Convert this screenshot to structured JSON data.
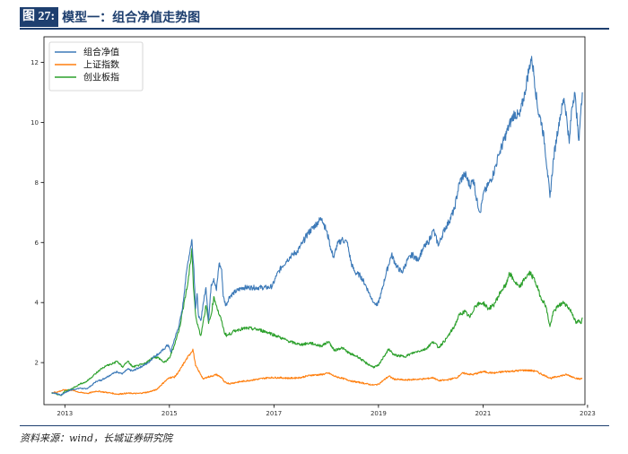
{
  "header": {
    "figure_label": "图 27:",
    "title": "模型一：组合净值走势图"
  },
  "footer": {
    "source": "资料来源：wind，长城证券研究院"
  },
  "chart_data": {
    "type": "line",
    "title": "模型一：组合净值走势图",
    "xlabel": "",
    "ylabel": "",
    "xlim": [
      2012.6,
      2022.95
    ],
    "ylim": [
      0.6,
      12.85
    ],
    "x_ticks": [
      {
        "value": 2013,
        "label": "2013"
      },
      {
        "value": 2015,
        "label": "2015"
      },
      {
        "value": 2017,
        "label": "2017"
      },
      {
        "value": 2019,
        "label": "2019"
      },
      {
        "value": 2021,
        "label": "2021"
      },
      {
        "value": 2023,
        "label": "2023"
      }
    ],
    "y_ticks": [
      {
        "value": 2,
        "label": "2"
      },
      {
        "value": 4,
        "label": "4"
      },
      {
        "value": 6,
        "label": "6"
      },
      {
        "value": 8,
        "label": "8"
      },
      {
        "value": 10,
        "label": "10"
      },
      {
        "value": 12,
        "label": "12"
      }
    ],
    "legend_position": "top-left",
    "series": [
      {
        "name": "组合净值",
        "color": "#3d7ab8",
        "points": [
          [
            2012.75,
            1.0
          ],
          [
            2012.85,
            0.97
          ],
          [
            2012.93,
            0.92
          ],
          [
            2013.0,
            1.0
          ],
          [
            2013.1,
            1.08
          ],
          [
            2013.2,
            1.12
          ],
          [
            2013.3,
            1.15
          ],
          [
            2013.4,
            1.12
          ],
          [
            2013.5,
            1.22
          ],
          [
            2013.6,
            1.38
          ],
          [
            2013.7,
            1.42
          ],
          [
            2013.8,
            1.52
          ],
          [
            2013.9,
            1.62
          ],
          [
            2014.0,
            1.7
          ],
          [
            2014.1,
            1.62
          ],
          [
            2014.2,
            1.78
          ],
          [
            2014.3,
            1.72
          ],
          [
            2014.4,
            1.82
          ],
          [
            2014.5,
            1.9
          ],
          [
            2014.6,
            2.0
          ],
          [
            2014.7,
            2.2
          ],
          [
            2014.8,
            2.3
          ],
          [
            2014.9,
            2.45
          ],
          [
            2014.97,
            2.6
          ],
          [
            2015.03,
            2.35
          ],
          [
            2015.1,
            2.8
          ],
          [
            2015.18,
            3.2
          ],
          [
            2015.25,
            3.8
          ],
          [
            2015.3,
            4.6
          ],
          [
            2015.35,
            5.3
          ],
          [
            2015.4,
            5.8
          ],
          [
            2015.43,
            6.1
          ],
          [
            2015.47,
            5.1
          ],
          [
            2015.5,
            3.8
          ],
          [
            2015.53,
            4.3
          ],
          [
            2015.56,
            3.5
          ],
          [
            2015.6,
            3.4
          ],
          [
            2015.65,
            4.0
          ],
          [
            2015.7,
            4.5
          ],
          [
            2015.75,
            3.4
          ],
          [
            2015.8,
            4.6
          ],
          [
            2015.85,
            4.8
          ],
          [
            2015.9,
            4.4
          ],
          [
            2015.95,
            5.3
          ],
          [
            2016.0,
            5.1
          ],
          [
            2016.03,
            4.2
          ],
          [
            2016.08,
            3.9
          ],
          [
            2016.15,
            4.2
          ],
          [
            2016.25,
            4.35
          ],
          [
            2016.4,
            4.5
          ],
          [
            2016.6,
            4.5
          ],
          [
            2016.9,
            4.5
          ],
          [
            2016.97,
            4.55
          ],
          [
            2017.05,
            4.9
          ],
          [
            2017.15,
            5.2
          ],
          [
            2017.25,
            5.4
          ],
          [
            2017.35,
            5.6
          ],
          [
            2017.45,
            5.7
          ],
          [
            2017.55,
            6.0
          ],
          [
            2017.65,
            6.3
          ],
          [
            2017.75,
            6.5
          ],
          [
            2017.85,
            6.7
          ],
          [
            2017.92,
            6.8
          ],
          [
            2018.0,
            6.4
          ],
          [
            2018.05,
            6.1
          ],
          [
            2018.1,
            5.7
          ],
          [
            2018.15,
            5.5
          ],
          [
            2018.2,
            5.9
          ],
          [
            2018.3,
            6.1
          ],
          [
            2018.4,
            6.0
          ],
          [
            2018.48,
            5.3
          ],
          [
            2018.55,
            5.0
          ],
          [
            2018.65,
            4.9
          ],
          [
            2018.75,
            4.6
          ],
          [
            2018.85,
            4.2
          ],
          [
            2018.92,
            4.0
          ],
          [
            2018.98,
            3.9
          ],
          [
            2019.05,
            4.3
          ],
          [
            2019.15,
            5.0
          ],
          [
            2019.25,
            5.6
          ],
          [
            2019.35,
            5.2
          ],
          [
            2019.45,
            5.0
          ],
          [
            2019.55,
            5.4
          ],
          [
            2019.65,
            5.6
          ],
          [
            2019.75,
            5.4
          ],
          [
            2019.85,
            5.8
          ],
          [
            2019.95,
            6.0
          ],
          [
            2020.05,
            6.4
          ],
          [
            2020.15,
            5.9
          ],
          [
            2020.25,
            6.4
          ],
          [
            2020.35,
            6.7
          ],
          [
            2020.45,
            7.1
          ],
          [
            2020.55,
            8.0
          ],
          [
            2020.65,
            8.3
          ],
          [
            2020.75,
            7.9
          ],
          [
            2020.82,
            8.1
          ],
          [
            2020.88,
            7.4
          ],
          [
            2020.95,
            7.0
          ],
          [
            2021.0,
            7.6
          ],
          [
            2021.1,
            7.9
          ],
          [
            2021.2,
            8.3
          ],
          [
            2021.3,
            8.9
          ],
          [
            2021.4,
            9.4
          ],
          [
            2021.5,
            9.9
          ],
          [
            2021.6,
            10.3
          ],
          [
            2021.7,
            10.2
          ],
          [
            2021.8,
            11.0
          ],
          [
            2021.88,
            11.8
          ],
          [
            2021.93,
            12.2
          ],
          [
            2021.98,
            11.5
          ],
          [
            2022.05,
            10.4
          ],
          [
            2022.12,
            10.0
          ],
          [
            2022.18,
            9.3
          ],
          [
            2022.23,
            8.4
          ],
          [
            2022.28,
            7.5
          ],
          [
            2022.35,
            8.8
          ],
          [
            2022.45,
            10.0
          ],
          [
            2022.55,
            10.8
          ],
          [
            2022.6,
            10.2
          ],
          [
            2022.65,
            9.3
          ],
          [
            2022.7,
            10.5
          ],
          [
            2022.75,
            11.0
          ],
          [
            2022.78,
            10.5
          ],
          [
            2022.83,
            9.4
          ],
          [
            2022.87,
            10.3
          ],
          [
            2022.9,
            11.0
          ]
        ]
      },
      {
        "name": "上证指数",
        "color": "#ff7f0e",
        "points": [
          [
            2012.75,
            1.0
          ],
          [
            2012.85,
            1.02
          ],
          [
            2013.0,
            1.1
          ],
          [
            2013.15,
            1.08
          ],
          [
            2013.3,
            1.0
          ],
          [
            2013.45,
            0.98
          ],
          [
            2013.6,
            1.05
          ],
          [
            2013.75,
            1.02
          ],
          [
            2013.9,
            0.98
          ],
          [
            2014.0,
            0.95
          ],
          [
            2014.2,
            0.98
          ],
          [
            2014.4,
            0.97
          ],
          [
            2014.6,
            1.02
          ],
          [
            2014.75,
            1.1
          ],
          [
            2014.9,
            1.35
          ],
          [
            2015.0,
            1.5
          ],
          [
            2015.1,
            1.52
          ],
          [
            2015.2,
            1.75
          ],
          [
            2015.3,
            2.05
          ],
          [
            2015.4,
            2.3
          ],
          [
            2015.45,
            2.45
          ],
          [
            2015.5,
            1.9
          ],
          [
            2015.55,
            1.75
          ],
          [
            2015.6,
            1.6
          ],
          [
            2015.65,
            1.45
          ],
          [
            2015.7,
            1.5
          ],
          [
            2015.8,
            1.55
          ],
          [
            2015.9,
            1.6
          ],
          [
            2016.0,
            1.5
          ],
          [
            2016.05,
            1.35
          ],
          [
            2016.15,
            1.3
          ],
          [
            2016.3,
            1.35
          ],
          [
            2016.5,
            1.4
          ],
          [
            2016.7,
            1.45
          ],
          [
            2016.9,
            1.5
          ],
          [
            2017.1,
            1.5
          ],
          [
            2017.3,
            1.48
          ],
          [
            2017.5,
            1.5
          ],
          [
            2017.7,
            1.58
          ],
          [
            2017.9,
            1.6
          ],
          [
            2018.05,
            1.65
          ],
          [
            2018.15,
            1.55
          ],
          [
            2018.3,
            1.48
          ],
          [
            2018.5,
            1.38
          ],
          [
            2018.7,
            1.32
          ],
          [
            2018.9,
            1.25
          ],
          [
            2019.0,
            1.28
          ],
          [
            2019.1,
            1.42
          ],
          [
            2019.2,
            1.55
          ],
          [
            2019.3,
            1.45
          ],
          [
            2019.5,
            1.42
          ],
          [
            2019.7,
            1.44
          ],
          [
            2019.9,
            1.46
          ],
          [
            2020.05,
            1.5
          ],
          [
            2020.15,
            1.4
          ],
          [
            2020.3,
            1.42
          ],
          [
            2020.5,
            1.5
          ],
          [
            2020.6,
            1.65
          ],
          [
            2020.8,
            1.6
          ],
          [
            2021.0,
            1.7
          ],
          [
            2021.2,
            1.65
          ],
          [
            2021.4,
            1.7
          ],
          [
            2021.6,
            1.72
          ],
          [
            2021.8,
            1.75
          ],
          [
            2022.0,
            1.72
          ],
          [
            2022.2,
            1.55
          ],
          [
            2022.3,
            1.48
          ],
          [
            2022.45,
            1.55
          ],
          [
            2022.6,
            1.6
          ],
          [
            2022.75,
            1.5
          ],
          [
            2022.85,
            1.45
          ],
          [
            2022.9,
            1.48
          ]
        ]
      },
      {
        "name": "创业板指",
        "color": "#2ca02c",
        "points": [
          [
            2012.75,
            1.0
          ],
          [
            2012.85,
            0.95
          ],
          [
            2012.93,
            0.9
          ],
          [
            2013.0,
            1.05
          ],
          [
            2013.1,
            1.1
          ],
          [
            2013.2,
            1.2
          ],
          [
            2013.3,
            1.3
          ],
          [
            2013.4,
            1.35
          ],
          [
            2013.5,
            1.5
          ],
          [
            2013.6,
            1.65
          ],
          [
            2013.7,
            1.8
          ],
          [
            2013.8,
            1.9
          ],
          [
            2013.9,
            1.95
          ],
          [
            2014.0,
            2.05
          ],
          [
            2014.1,
            1.85
          ],
          [
            2014.2,
            2.05
          ],
          [
            2014.3,
            1.85
          ],
          [
            2014.4,
            1.9
          ],
          [
            2014.5,
            1.95
          ],
          [
            2014.6,
            2.05
          ],
          [
            2014.7,
            2.2
          ],
          [
            2014.8,
            2.15
          ],
          [
            2014.9,
            2.0
          ],
          [
            2015.0,
            2.15
          ],
          [
            2015.1,
            2.6
          ],
          [
            2015.2,
            3.2
          ],
          [
            2015.28,
            4.0
          ],
          [
            2015.35,
            4.6
          ],
          [
            2015.4,
            5.3
          ],
          [
            2015.43,
            5.8
          ],
          [
            2015.46,
            4.5
          ],
          [
            2015.5,
            3.6
          ],
          [
            2015.55,
            3.2
          ],
          [
            2015.6,
            2.9
          ],
          [
            2015.65,
            3.4
          ],
          [
            2015.7,
            3.9
          ],
          [
            2015.75,
            3.3
          ],
          [
            2015.8,
            3.6
          ],
          [
            2015.85,
            4.2
          ],
          [
            2015.9,
            3.9
          ],
          [
            2015.95,
            3.6
          ],
          [
            2016.0,
            3.4
          ],
          [
            2016.05,
            3.0
          ],
          [
            2016.1,
            2.9
          ],
          [
            2016.2,
            3.0
          ],
          [
            2016.3,
            3.1
          ],
          [
            2016.5,
            3.15
          ],
          [
            2016.7,
            3.1
          ],
          [
            2016.9,
            3.0
          ],
          [
            2017.1,
            2.85
          ],
          [
            2017.3,
            2.7
          ],
          [
            2017.5,
            2.6
          ],
          [
            2017.7,
            2.65
          ],
          [
            2017.9,
            2.55
          ],
          [
            2018.05,
            2.7
          ],
          [
            2018.15,
            2.4
          ],
          [
            2018.3,
            2.5
          ],
          [
            2018.45,
            2.3
          ],
          [
            2018.6,
            2.2
          ],
          [
            2018.75,
            2.0
          ],
          [
            2018.9,
            1.85
          ],
          [
            2019.0,
            1.9
          ],
          [
            2019.1,
            2.2
          ],
          [
            2019.2,
            2.45
          ],
          [
            2019.3,
            2.25
          ],
          [
            2019.5,
            2.2
          ],
          [
            2019.7,
            2.35
          ],
          [
            2019.9,
            2.45
          ],
          [
            2020.05,
            2.7
          ],
          [
            2020.15,
            2.5
          ],
          [
            2020.3,
            2.8
          ],
          [
            2020.45,
            3.2
          ],
          [
            2020.55,
            3.6
          ],
          [
            2020.65,
            3.7
          ],
          [
            2020.75,
            3.5
          ],
          [
            2020.85,
            3.9
          ],
          [
            2021.0,
            4.0
          ],
          [
            2021.1,
            3.8
          ],
          [
            2021.2,
            3.9
          ],
          [
            2021.35,
            4.4
          ],
          [
            2021.45,
            4.6
          ],
          [
            2021.5,
            5.0
          ],
          [
            2021.6,
            4.7
          ],
          [
            2021.7,
            4.5
          ],
          [
            2021.8,
            4.8
          ],
          [
            2021.9,
            5.0
          ],
          [
            2022.0,
            4.7
          ],
          [
            2022.1,
            4.2
          ],
          [
            2022.2,
            3.9
          ],
          [
            2022.28,
            3.2
          ],
          [
            2022.35,
            3.7
          ],
          [
            2022.45,
            3.9
          ],
          [
            2022.55,
            4.0
          ],
          [
            2022.65,
            3.8
          ],
          [
            2022.72,
            3.6
          ],
          [
            2022.78,
            3.3
          ],
          [
            2022.83,
            3.4
          ],
          [
            2022.87,
            3.3
          ],
          [
            2022.9,
            3.5
          ]
        ]
      }
    ]
  }
}
